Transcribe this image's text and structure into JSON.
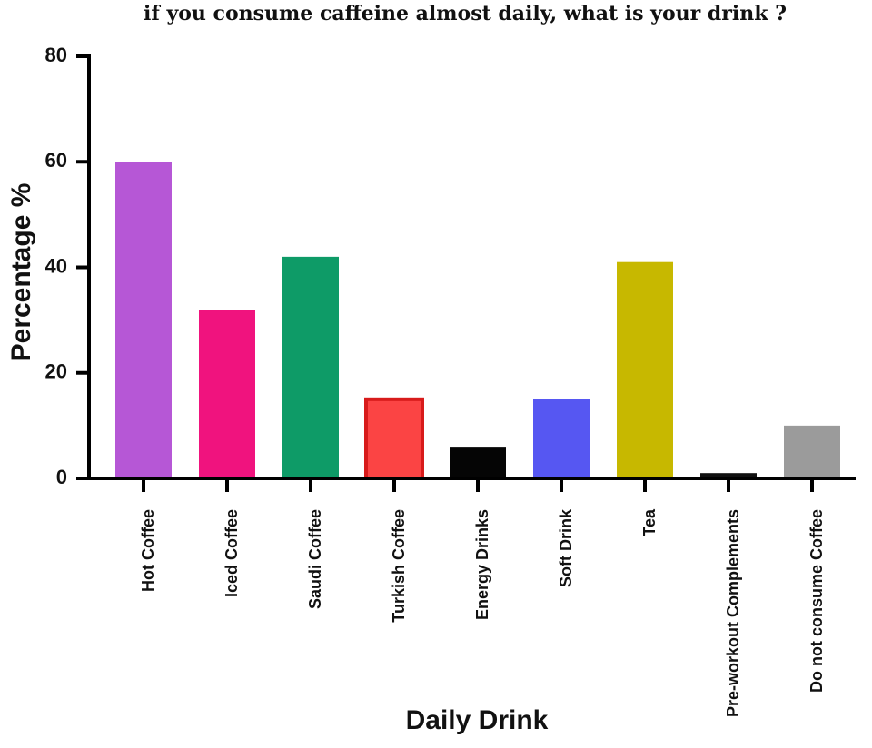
{
  "chart_data": {
    "type": "bar",
    "title": "if you consume caffeine almost daily, what is your drink ?",
    "xlabel": "Daily Drink",
    "ylabel": "Percentage %",
    "ylim": [
      0,
      80
    ],
    "yticks": [
      0,
      20,
      40,
      60,
      80
    ],
    "grid": false,
    "categories": [
      "Hot Coffee",
      "Iced Coffee",
      "Saudi Coffee",
      "Turkish Coffee",
      "Energy Drinks",
      "Soft Drink",
      "Tea",
      "Pre-workout Complements",
      "Do not consume Coffee"
    ],
    "values": [
      60,
      32,
      42,
      15,
      6,
      15,
      41,
      1,
      10
    ],
    "colors": [
      "#b657d6",
      "#f0137e",
      "#0e9b67",
      "#fb4444",
      "#050505",
      "#5657f2",
      "#c7b800",
      "#111111",
      "#9b9b9b"
    ],
    "edge_colors": [
      "#b657d6",
      "#f0137e",
      "#0e9b67",
      "#d81b1b",
      "#050505",
      "#5657f2",
      "#c7b800",
      "#111111",
      "#9b9b9b"
    ]
  }
}
